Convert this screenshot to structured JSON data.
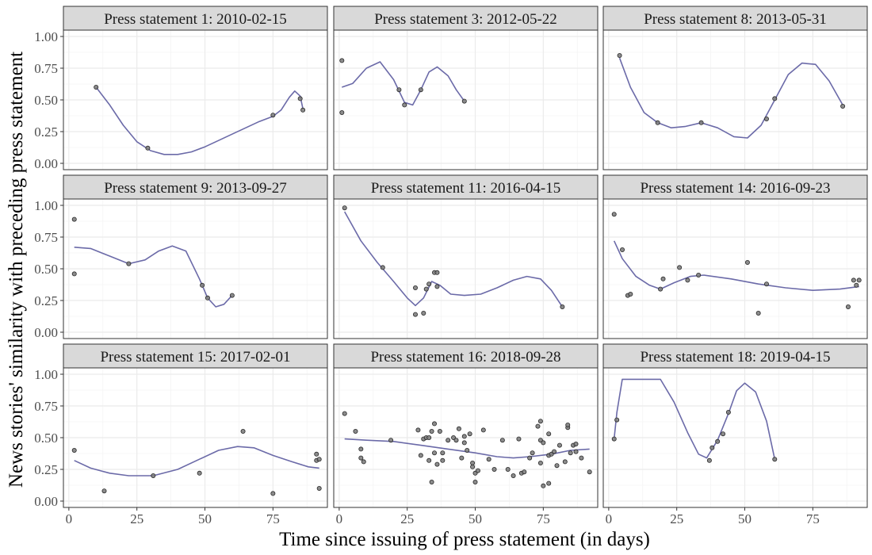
{
  "chart_data": {
    "type": "scatter",
    "xlabel": "Time since issuing of press statement (in days)",
    "ylabel": "News stories' similarity with preceding press statement",
    "xlim": [
      -2,
      95
    ],
    "ylim": [
      -0.05,
      1.05
    ],
    "x_ticks": [
      "0",
      "25",
      "50",
      "75"
    ],
    "x_tick_values": [
      0,
      25,
      50,
      75
    ],
    "y_ticks": [
      "0.00",
      "0.25",
      "0.50",
      "0.75",
      "1.00"
    ],
    "y_tick_values": [
      0,
      0.25,
      0.5,
      0.75,
      1.0
    ],
    "grid": true,
    "colors": {
      "line": "#6b6aa8",
      "point_fill": "#7f7f7f",
      "point_stroke": "#2a2a2a",
      "strip_bg": "#d9d9d9",
      "grid_major": "#ebebeb",
      "grid_minor": "#f4f4f4"
    },
    "panels": [
      {
        "title": "Press statement  1: 2010-02-15",
        "points": [
          [
            10,
            0.6
          ],
          [
            29,
            0.12
          ],
          [
            75,
            0.38
          ],
          [
            85,
            0.51
          ],
          [
            86,
            0.42
          ]
        ],
        "smooth": [
          [
            10,
            0.6
          ],
          [
            15,
            0.46
          ],
          [
            20,
            0.3
          ],
          [
            25,
            0.17
          ],
          [
            30,
            0.1
          ],
          [
            35,
            0.07
          ],
          [
            40,
            0.07
          ],
          [
            45,
            0.09
          ],
          [
            50,
            0.13
          ],
          [
            55,
            0.18
          ],
          [
            60,
            0.23
          ],
          [
            65,
            0.28
          ],
          [
            70,
            0.33
          ],
          [
            75,
            0.37
          ],
          [
            78,
            0.42
          ],
          [
            81,
            0.52
          ],
          [
            83,
            0.57
          ],
          [
            85,
            0.53
          ],
          [
            86,
            0.43
          ]
        ]
      },
      {
        "title": "Press statement  3: 2012-05-22",
        "points": [
          [
            1,
            0.81
          ],
          [
            1,
            0.4
          ],
          [
            22,
            0.58
          ],
          [
            24,
            0.46
          ],
          [
            30,
            0.58
          ],
          [
            46,
            0.49
          ]
        ],
        "smooth": [
          [
            1,
            0.6
          ],
          [
            5,
            0.63
          ],
          [
            10,
            0.75
          ],
          [
            15,
            0.8
          ],
          [
            20,
            0.66
          ],
          [
            24,
            0.48
          ],
          [
            27,
            0.46
          ],
          [
            30,
            0.58
          ],
          [
            33,
            0.72
          ],
          [
            36,
            0.76
          ],
          [
            40,
            0.69
          ],
          [
            43,
            0.58
          ],
          [
            46,
            0.49
          ]
        ]
      },
      {
        "title": "Press statement  8: 2013-05-31",
        "points": [
          [
            4,
            0.85
          ],
          [
            18,
            0.32
          ],
          [
            34,
            0.32
          ],
          [
            58,
            0.35
          ],
          [
            61,
            0.51
          ],
          [
            86,
            0.45
          ]
        ],
        "smooth": [
          [
            4,
            0.83
          ],
          [
            8,
            0.6
          ],
          [
            13,
            0.4
          ],
          [
            18,
            0.32
          ],
          [
            23,
            0.28
          ],
          [
            28,
            0.29
          ],
          [
            34,
            0.32
          ],
          [
            40,
            0.28
          ],
          [
            46,
            0.21
          ],
          [
            51,
            0.2
          ],
          [
            56,
            0.3
          ],
          [
            61,
            0.5
          ],
          [
            66,
            0.7
          ],
          [
            71,
            0.79
          ],
          [
            76,
            0.78
          ],
          [
            81,
            0.65
          ],
          [
            86,
            0.46
          ]
        ]
      },
      {
        "title": "Press statement  9: 2013-09-27",
        "points": [
          [
            2,
            0.89
          ],
          [
            2,
            0.46
          ],
          [
            22,
            0.54
          ],
          [
            49,
            0.37
          ],
          [
            51,
            0.27
          ],
          [
            60,
            0.29
          ]
        ],
        "smooth": [
          [
            2,
            0.67
          ],
          [
            8,
            0.66
          ],
          [
            15,
            0.6
          ],
          [
            22,
            0.54
          ],
          [
            28,
            0.57
          ],
          [
            33,
            0.64
          ],
          [
            38,
            0.68
          ],
          [
            43,
            0.64
          ],
          [
            48,
            0.42
          ],
          [
            51,
            0.27
          ],
          [
            54,
            0.2
          ],
          [
            57,
            0.22
          ],
          [
            60,
            0.29
          ]
        ]
      },
      {
        "title": "Press statement 11: 2016-04-15",
        "points": [
          [
            2,
            0.98
          ],
          [
            16,
            0.51
          ],
          [
            28,
            0.35
          ],
          [
            28,
            0.14
          ],
          [
            31,
            0.15
          ],
          [
            32,
            0.34
          ],
          [
            33,
            0.38
          ],
          [
            35,
            0.47
          ],
          [
            36,
            0.47
          ],
          [
            36,
            0.36
          ],
          [
            82,
            0.2
          ]
        ],
        "smooth": [
          [
            2,
            0.95
          ],
          [
            8,
            0.72
          ],
          [
            14,
            0.55
          ],
          [
            20,
            0.4
          ],
          [
            25,
            0.27
          ],
          [
            28,
            0.21
          ],
          [
            31,
            0.27
          ],
          [
            34,
            0.4
          ],
          [
            37,
            0.37
          ],
          [
            41,
            0.3
          ],
          [
            46,
            0.29
          ],
          [
            52,
            0.3
          ],
          [
            58,
            0.35
          ],
          [
            64,
            0.41
          ],
          [
            69,
            0.44
          ],
          [
            74,
            0.42
          ],
          [
            78,
            0.33
          ],
          [
            82,
            0.2
          ]
        ]
      },
      {
        "title": "Press statement 14: 2016-09-23",
        "points": [
          [
            2,
            0.93
          ],
          [
            5,
            0.65
          ],
          [
            7,
            0.29
          ],
          [
            8,
            0.3
          ],
          [
            19,
            0.34
          ],
          [
            20,
            0.42
          ],
          [
            26,
            0.51
          ],
          [
            29,
            0.41
          ],
          [
            33,
            0.45
          ],
          [
            51,
            0.55
          ],
          [
            55,
            0.15
          ],
          [
            58,
            0.38
          ],
          [
            88,
            0.2
          ],
          [
            90,
            0.41
          ],
          [
            92,
            0.41
          ],
          [
            91,
            0.37
          ]
        ],
        "smooth": [
          [
            2,
            0.72
          ],
          [
            5,
            0.58
          ],
          [
            10,
            0.44
          ],
          [
            15,
            0.37
          ],
          [
            19,
            0.34
          ],
          [
            24,
            0.39
          ],
          [
            30,
            0.44
          ],
          [
            35,
            0.45
          ],
          [
            45,
            0.42
          ],
          [
            55,
            0.38
          ],
          [
            65,
            0.35
          ],
          [
            75,
            0.33
          ],
          [
            85,
            0.34
          ],
          [
            92,
            0.36
          ]
        ]
      },
      {
        "title": "Press statement 15: 2017-02-01",
        "points": [
          [
            2,
            0.4
          ],
          [
            13,
            0.08
          ],
          [
            31,
            0.2
          ],
          [
            48,
            0.22
          ],
          [
            64,
            0.55
          ],
          [
            75,
            0.06
          ],
          [
            91,
            0.37
          ],
          [
            91,
            0.32
          ],
          [
            92,
            0.33
          ],
          [
            92,
            0.1
          ]
        ],
        "smooth": [
          [
            2,
            0.32
          ],
          [
            8,
            0.26
          ],
          [
            15,
            0.22
          ],
          [
            22,
            0.2
          ],
          [
            31,
            0.2
          ],
          [
            40,
            0.25
          ],
          [
            48,
            0.33
          ],
          [
            55,
            0.4
          ],
          [
            62,
            0.43
          ],
          [
            68,
            0.42
          ],
          [
            75,
            0.36
          ],
          [
            82,
            0.31
          ],
          [
            88,
            0.27
          ],
          [
            92,
            0.26
          ]
        ]
      },
      {
        "title": "Press statement 16: 2018-09-28",
        "points": [
          [
            2,
            0.69
          ],
          [
            6,
            0.55
          ],
          [
            8,
            0.41
          ],
          [
            8,
            0.34
          ],
          [
            9,
            0.31
          ],
          [
            19,
            0.48
          ],
          [
            29,
            0.56
          ],
          [
            30,
            0.36
          ],
          [
            31,
            0.49
          ],
          [
            32,
            0.5
          ],
          [
            33,
            0.5
          ],
          [
            33,
            0.32
          ],
          [
            34,
            0.15
          ],
          [
            34,
            0.55
          ],
          [
            35,
            0.38
          ],
          [
            35,
            0.61
          ],
          [
            36,
            0.29
          ],
          [
            37,
            0.55
          ],
          [
            38,
            0.38
          ],
          [
            38,
            0.32
          ],
          [
            40,
            0.48
          ],
          [
            42,
            0.5
          ],
          [
            43,
            0.48
          ],
          [
            44,
            0.57
          ],
          [
            45,
            0.34
          ],
          [
            46,
            0.51
          ],
          [
            46,
            0.46
          ],
          [
            47,
            0.4
          ],
          [
            48,
            0.53
          ],
          [
            49,
            0.3
          ],
          [
            49,
            0.27
          ],
          [
            50,
            0.22
          ],
          [
            50,
            0.15
          ],
          [
            51,
            0.24
          ],
          [
            53,
            0.56
          ],
          [
            55,
            0.33
          ],
          [
            57,
            0.25
          ],
          [
            60,
            0.48
          ],
          [
            62,
            0.25
          ],
          [
            64,
            0.2
          ],
          [
            66,
            0.49
          ],
          [
            67,
            0.22
          ],
          [
            68,
            0.23
          ],
          [
            70,
            0.34
          ],
          [
            71,
            0.38
          ],
          [
            73,
            0.59
          ],
          [
            74,
            0.63
          ],
          [
            74,
            0.3
          ],
          [
            74,
            0.48
          ],
          [
            75,
            0.46
          ],
          [
            75,
            0.12
          ],
          [
            77,
            0.14
          ],
          [
            77,
            0.36
          ],
          [
            77,
            0.53
          ],
          [
            78,
            0.37
          ],
          [
            79,
            0.39
          ],
          [
            80,
            0.28
          ],
          [
            81,
            0.44
          ],
          [
            83,
            0.31
          ],
          [
            84,
            0.58
          ],
          [
            84,
            0.6
          ],
          [
            85,
            0.38
          ],
          [
            86,
            0.44
          ],
          [
            87,
            0.45
          ],
          [
            87,
            0.39
          ],
          [
            89,
            0.34
          ],
          [
            92,
            0.23
          ]
        ],
        "smooth": [
          [
            2,
            0.49
          ],
          [
            10,
            0.48
          ],
          [
            20,
            0.47
          ],
          [
            30,
            0.44
          ],
          [
            40,
            0.41
          ],
          [
            50,
            0.38
          ],
          [
            58,
            0.35
          ],
          [
            64,
            0.34
          ],
          [
            70,
            0.35
          ],
          [
            78,
            0.37
          ],
          [
            85,
            0.4
          ],
          [
            92,
            0.41
          ]
        ]
      },
      {
        "title": "Press statement 18: 2019-04-15",
        "points": [
          [
            2,
            0.49
          ],
          [
            3,
            0.64
          ],
          [
            37,
            0.32
          ],
          [
            38,
            0.42
          ],
          [
            40,
            0.47
          ],
          [
            42,
            0.53
          ],
          [
            44,
            0.7
          ],
          [
            61,
            0.33
          ]
        ],
        "smooth": [
          [
            2,
            0.49
          ],
          [
            3,
            0.7
          ],
          [
            5,
            0.96
          ],
          [
            19,
            0.96
          ],
          [
            24,
            0.78
          ],
          [
            29,
            0.54
          ],
          [
            33,
            0.37
          ],
          [
            36,
            0.34
          ],
          [
            40,
            0.48
          ],
          [
            44,
            0.69
          ],
          [
            47,
            0.87
          ],
          [
            50,
            0.93
          ],
          [
            54,
            0.86
          ],
          [
            58,
            0.63
          ],
          [
            61,
            0.33
          ]
        ]
      }
    ]
  }
}
